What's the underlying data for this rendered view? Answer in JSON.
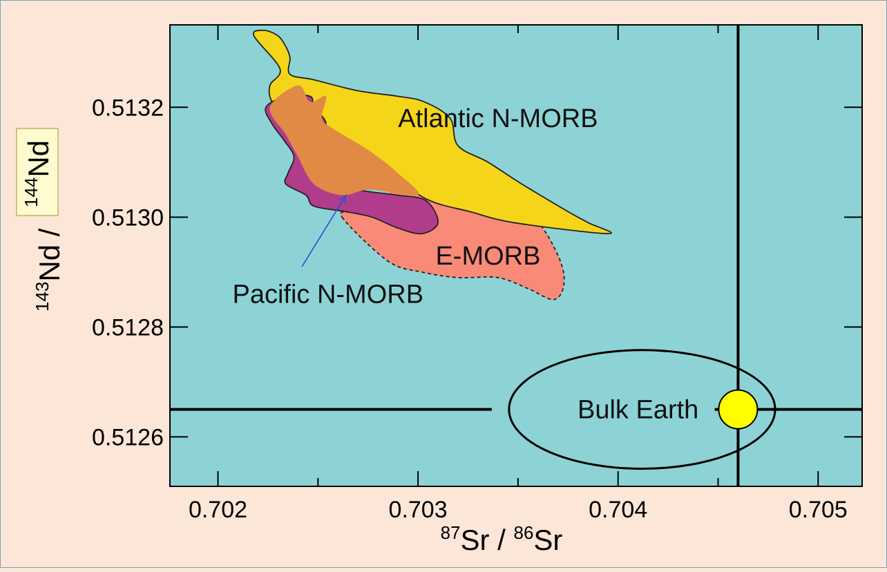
{
  "chart_data": {
    "type": "area",
    "title": "",
    "xlabel": {
      "sup1": "87",
      "text1": "Sr / ",
      "sup2": "86",
      "text2": "Sr"
    },
    "ylabel": {
      "sup1": "143",
      "text1": "Nd / ",
      "sup2": "144",
      "text2": "Nd"
    },
    "xlim": [
      0.70176,
      0.70522
    ],
    "ylim": [
      0.51251,
      0.51335
    ],
    "xticks": [
      0.702,
      0.703,
      0.704,
      0.705
    ],
    "xtick_labels": [
      "0.702",
      "0.703",
      "0.704",
      "0.705"
    ],
    "xminor": [
      0.7025,
      0.7035,
      0.7045
    ],
    "yticks": [
      0.5126,
      0.5128,
      0.513,
      0.5132
    ],
    "ytick_labels": [
      "0.5126",
      "0.5128",
      "0.5130",
      "0.5132"
    ],
    "grid": false,
    "colors": {
      "plot_bg": "#8dd3d6",
      "emorb": "#f98a78",
      "atlantic": "#f5d51a",
      "pacific": "#b13c8c",
      "overlap": "#e08a45",
      "bulk_earth_point": "#ffff00",
      "arrow": "#2b4fd6"
    },
    "series": [
      {
        "name": "E-MORB",
        "outline": "dashed",
        "x": [
          0.70262,
          0.70285,
          0.70302,
          0.7032,
          0.7034,
          0.70355,
          0.70368,
          0.70373,
          0.7037,
          0.70358,
          0.70335,
          0.70312,
          0.70293,
          0.70278,
          0.70268
        ],
        "y": [
          0.513,
          0.51292,
          0.5129,
          0.51289,
          0.51289,
          0.51287,
          0.51285,
          0.51288,
          0.51293,
          0.513,
          0.51307,
          0.51312,
          0.51307,
          0.51302,
          0.51301
        ]
      },
      {
        "name": "Atlantic N-MORB",
        "outline": "solid",
        "x": [
          0.70218,
          0.70223,
          0.7023,
          0.70234,
          0.70236,
          0.70236,
          0.70248,
          0.7027,
          0.7029,
          0.70303,
          0.70316,
          0.7032,
          0.70335,
          0.70352,
          0.70375,
          0.70385,
          0.70395,
          0.70348,
          0.70326,
          0.70306,
          0.70288,
          0.70266,
          0.70248,
          0.70236,
          0.70227,
          0.70226,
          0.70231
        ],
        "y": [
          0.51333,
          0.51334,
          0.51333,
          0.51331,
          0.51329,
          0.51326,
          0.51325,
          0.51323,
          0.51322,
          0.51321,
          0.51318,
          0.51313,
          0.5131,
          0.51306,
          0.51301,
          0.51299,
          0.51297,
          0.51299,
          0.51301,
          0.51303,
          0.51307,
          0.51311,
          0.51314,
          0.51317,
          0.51321,
          0.51324,
          0.51327
        ]
      },
      {
        "name": "Pacific N-MORB",
        "outline": "solid",
        "x": [
          0.70224,
          0.70227,
          0.70233,
          0.70238,
          0.70235,
          0.70234,
          0.70244,
          0.70248,
          0.70264,
          0.70277,
          0.7029,
          0.70302,
          0.7031,
          0.70304,
          0.7029,
          0.7027,
          0.70257,
          0.7025,
          0.70248,
          0.70254,
          0.70248,
          0.70246,
          0.70234
        ],
        "y": [
          0.5132,
          0.51317,
          0.51314,
          0.51311,
          0.51308,
          0.51306,
          0.51304,
          0.51302,
          0.51301,
          0.513,
          0.51298,
          0.51297,
          0.51299,
          0.51303,
          0.51304,
          0.51305,
          0.51307,
          0.51309,
          0.51314,
          0.51317,
          0.5132,
          0.51322,
          0.51322
        ]
      }
    ],
    "overlap_region": {
      "x": [
        0.70226,
        0.7024,
        0.70246,
        0.70254,
        0.70252,
        0.70258,
        0.70276,
        0.7029,
        0.703,
        0.70276,
        0.70262,
        0.70248,
        0.7024,
        0.70234
      ],
      "y": [
        0.5132,
        0.51324,
        0.51321,
        0.51322,
        0.51318,
        0.51316,
        0.51312,
        0.51308,
        0.51304,
        0.51305,
        0.51304,
        0.51306,
        0.51311,
        0.51315
      ]
    },
    "bulk_earth": {
      "point_x": 0.7046,
      "point_y": 0.51265,
      "ellipse_center_x": 0.70412,
      "ellipse_center_y": 0.51265,
      "ellipse_rx": 0.000665,
      "ellipse_ry": 0.000108
    },
    "labels": [
      {
        "text": "Atlantic N-MORB",
        "x": 0.7034,
        "y": 0.51318
      },
      {
        "text": "E-MORB",
        "x": 0.70335,
        "y": 0.51293
      },
      {
        "text": "Pacific N-MORB",
        "x": 0.70255,
        "y": 0.51286
      },
      {
        "text": "Bulk Earth",
        "x": 0.7041,
        "y": 0.51265
      }
    ],
    "arrow": {
      "from_x": 0.70242,
      "from_y": 0.51291,
      "to_x": 0.70264,
      "to_y": 0.51304
    }
  }
}
